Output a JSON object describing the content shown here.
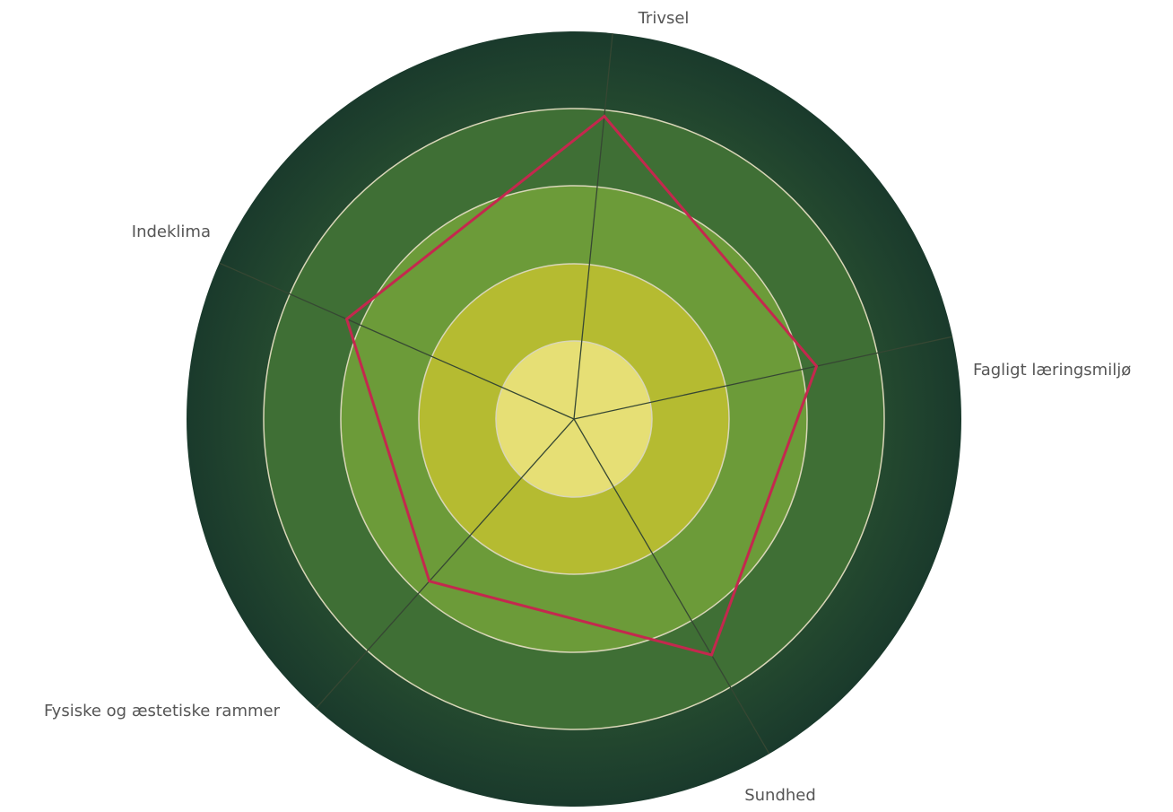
{
  "chart_data": {
    "type": "radar",
    "title": "",
    "categories": [
      "Trivsel",
      "Fagligt læringsmiljø",
      "Sundhed",
      "Fysiske og æstetiske rammer",
      "Indeklima"
    ],
    "rings": 5,
    "rlim": [
      0,
      5
    ],
    "series": [
      {
        "values": [
          4.9,
          4.0,
          4.4,
          3.5,
          4.0
        ]
      }
    ],
    "grid": true,
    "legend": "none",
    "colors": {
      "ring_fills": [
        "#e6df75",
        "#b5bb31",
        "#6c9b39",
        "#3f6f35",
        "#244a36"
      ],
      "outer_edge": "#1d3f2f",
      "ring_stroke": "#d9d6b8",
      "spoke": "#364733",
      "series_line": "#c4284e"
    }
  }
}
